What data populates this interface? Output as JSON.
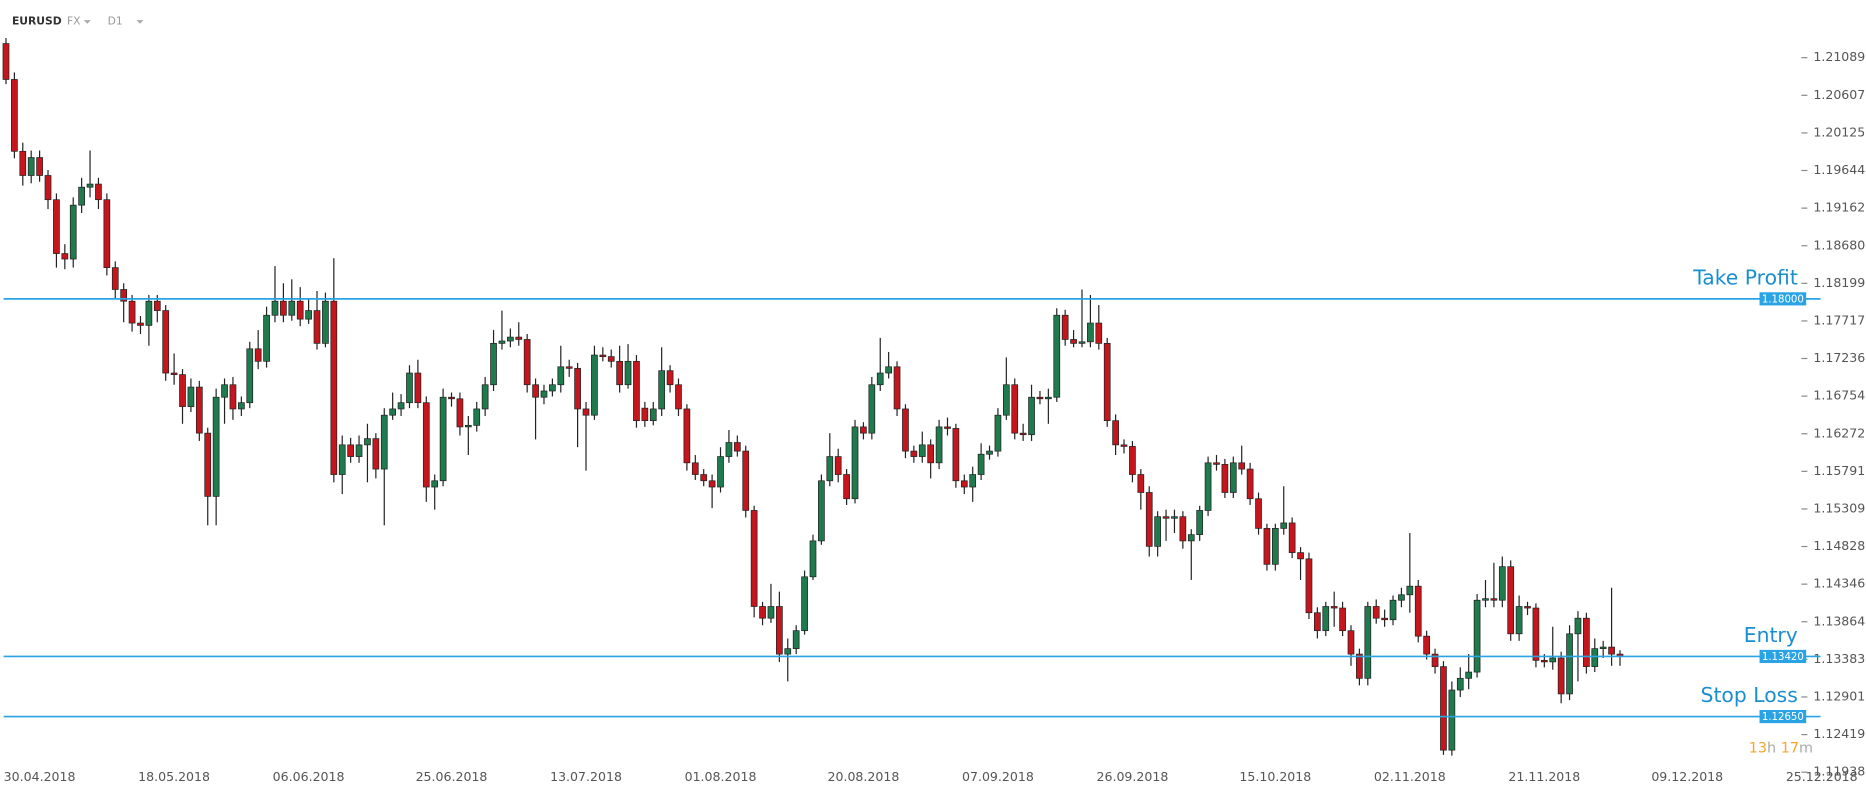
{
  "header": {
    "symbol": "EURUSD",
    "market": "FX",
    "timeframe": "D1"
  },
  "countdown": [
    "13",
    "h",
    "17",
    "m"
  ],
  "chart_data": {
    "type": "candlestick",
    "up_color": "#1f7a4d",
    "down_color": "#c4161c",
    "level_color": "#29a3e3",
    "ylim": [
      1.1175,
      1.218
    ],
    "yticks": [
      1.21089,
      1.20607,
      1.20125,
      1.19644,
      1.19162,
      {
        "value": 1.1868,
        "label": "1.18680"
      },
      1.18199,
      1.17717,
      1.17236,
      1.16754,
      1.16272,
      1.15791,
      1.15309,
      1.14828,
      1.14346,
      1.13864,
      1.13383,
      1.12901,
      1.12419,
      1.11938
    ],
    "levels": [
      {
        "name": "Take Profit",
        "value": 1.18,
        "label": "1.18000"
      },
      {
        "name": "Entry",
        "value": 1.1342,
        "label": "1.13420"
      },
      {
        "name": "Stop Loss",
        "value": 1.1265,
        "label": "1.12650"
      }
    ],
    "categories": [
      null,
      null,
      null,
      null,
      "30.04.2018",
      null,
      null,
      null,
      null,
      null,
      null,
      null,
      null,
      null,
      null,
      null,
      null,
      null,
      null,
      null,
      "18.05.2018",
      null,
      null,
      null,
      null,
      null,
      null,
      null,
      null,
      null,
      null,
      null,
      null,
      null,
      null,
      null,
      "06.06.2018",
      null,
      null,
      null,
      null,
      null,
      null,
      null,
      null,
      null,
      null,
      null,
      null,
      null,
      null,
      null,
      null,
      "25.06.2018",
      null,
      null,
      null,
      null,
      null,
      null,
      null,
      null,
      null,
      null,
      null,
      null,
      null,
      null,
      null,
      "13.07.2018",
      null,
      null,
      null,
      null,
      null,
      null,
      null,
      null,
      null,
      null,
      null,
      null,
      null,
      null,
      null,
      "01.08.2018",
      null,
      null,
      null,
      null,
      null,
      null,
      null,
      null,
      null,
      null,
      null,
      null,
      null,
      null,
      null,
      null,
      "20.08.2018",
      null,
      null,
      null,
      null,
      null,
      null,
      null,
      null,
      null,
      null,
      null,
      null,
      null,
      null,
      null,
      "07.09.2018",
      null,
      null,
      null,
      null,
      null,
      null,
      null,
      null,
      null,
      null,
      null,
      null,
      null,
      null,
      null,
      "26.09.2018",
      null,
      null,
      null,
      null,
      null,
      null,
      null,
      null,
      null,
      null,
      null,
      null,
      null,
      null,
      null,
      null,
      "15.10.2018",
      null,
      null,
      null,
      null,
      null,
      null,
      null,
      null,
      null,
      null,
      null,
      null,
      null,
      null,
      null,
      "02.11.2018",
      null,
      null,
      null,
      null,
      null,
      null,
      null,
      null,
      null,
      null,
      null,
      null,
      null,
      null,
      null,
      "21.11.2018",
      null,
      null,
      null,
      null,
      null,
      null,
      null,
      null,
      null,
      null,
      null,
      null,
      null,
      null,
      null,
      null,
      "09.12.2018",
      null,
      null,
      null,
      null,
      null,
      null,
      null,
      null,
      null,
      null,
      null,
      null,
      null,
      null,
      null,
      "25.12.2018"
    ],
    "open": [
      1.2127,
      1.2081,
      1.1989,
      1.1958,
      1.1981,
      1.1958,
      1.1927,
      1.1858,
      1.1851,
      1.192,
      1.1943,
      1.1947,
      1.1927,
      1.184,
      1.1812,
      1.1797,
      1.1769,
      1.1766,
      1.1797,
      1.1785,
      1.1705,
      1.1703,
      1.1662,
      1.1687,
      1.1628,
      1.1547,
      1.1674,
      1.169,
      1.1659,
      1.1667,
      1.1736,
      1.172,
      1.1779,
      1.1797,
      1.1779,
      1.1797,
      1.1774,
      1.1785,
      1.1743,
      1.1797,
      1.1575,
      1.1613,
      1.1598,
      1.1613,
      1.1621,
      1.1582,
      1.1651,
      1.1659,
      1.1667,
      1.1705,
      1.1667,
      1.1559,
      1.1567,
      1.1674,
      1.1672,
      1.1636,
      1.1638,
      1.1659,
      1.169,
      1.1743,
      1.1746,
      1.1751,
      1.1748,
      1.169,
      1.1674,
      1.1682,
      1.169,
      1.1713,
      1.1711,
      1.1659,
      1.1651,
      1.1728,
      1.1726,
      1.172,
      1.169,
      1.172,
      1.166,
      1.1644,
      1.1659,
      1.1708,
      1.169,
      1.1659,
      1.159,
      1.1575,
      1.1567,
      1.1559,
      1.1598,
      1.1616,
      1.1605,
      1.1529,
      1.1406,
      1.1391,
      1.1406,
      1.1345,
      1.1352,
      1.1375,
      1.1444,
      1.149,
      1.1567,
      1.1598,
      1.1575,
      1.1544,
      1.1636,
      1.1628,
      1.169,
      1.1705,
      1.1713,
      1.1659,
      1.1605,
      1.1598,
      1.1613,
      1.159,
      1.1636,
      1.1634,
      1.1567,
      1.1559,
      1.1575,
      1.1601,
      1.1605,
      1.1651,
      1.169,
      1.1628,
      1.1626,
      1.1674,
      1.1672,
      1.1674,
      1.1779,
      1.1748,
      1.1743,
      1.1745,
      1.1769,
      1.1743,
      1.1644,
      1.1613,
      1.1611,
      1.1575,
      1.1552,
      1.1483,
      1.1521,
      1.1519,
      1.1521,
      1.149,
      1.1498,
      1.1529,
      1.159,
      1.1588,
      1.1552,
      1.159,
      1.1582,
      1.1544,
      1.1506,
      1.146,
      1.1506,
      1.1513,
      1.1475,
      1.1467,
      1.1398,
      1.1375,
      1.1406,
      1.1404,
      1.1375,
      1.1345,
      1.1314,
      1.1406,
      1.1391,
      1.1389,
      1.1414,
      1.1421,
      1.1432,
      1.1368,
      1.1345,
      1.1329,
      1.1222,
      1.1299,
      1.1314,
      1.1322,
      1.1414,
      1.1416,
      1.1414,
      1.1457,
      1.1371,
      1.1406,
      1.1404,
      1.1337,
      1.1335,
      1.134,
      1.1294,
      1.1371,
      1.1391,
      1.1329,
      1.1352,
      1.1354,
      1.1345,
      null,
      null,
      null,
      null,
      null,
      null,
      null,
      null,
      null,
      null,
      null,
      null,
      null,
      null,
      null,
      null,
      null,
      null,
      null,
      null,
      null,
      null,
      null,
      null
    ],
    "high": [
      1.2134,
      1.209,
      1.2,
      1.199,
      1.199,
      1.1965,
      1.1935,
      1.187,
      1.193,
      1.1955,
      1.199,
      1.1955,
      1.1935,
      1.1848,
      1.182,
      1.1805,
      1.1778,
      1.1805,
      1.1805,
      1.1792,
      1.173,
      1.171,
      1.1698,
      1.1695,
      1.1635,
      1.1685,
      1.1698,
      1.17,
      1.1675,
      1.1745,
      1.176,
      1.179,
      1.1842,
      1.182,
      1.1825,
      1.1815,
      1.18,
      1.181,
      1.1808,
      1.1852,
      1.1625,
      1.1622,
      1.1625,
      1.164,
      1.1628,
      1.166,
      1.168,
      1.1678,
      1.1715,
      1.1722,
      1.1675,
      1.1575,
      1.1685,
      1.168,
      1.168,
      1.165,
      1.1668,
      1.17,
      1.176,
      1.1785,
      1.1762,
      1.177,
      1.1755,
      1.1698,
      1.169,
      1.1698,
      1.174,
      1.1722,
      1.1718,
      1.1668,
      1.174,
      1.1738,
      1.1735,
      1.174,
      1.1742,
      1.1728,
      1.1668,
      1.1668,
      1.1738,
      1.1715,
      1.1698,
      1.1665,
      1.16,
      1.1582,
      1.1575,
      1.161,
      1.1632,
      1.1625,
      1.1612,
      1.1535,
      1.1412,
      1.1435,
      1.1425,
      1.1365,
      1.1382,
      1.1452,
      1.1498,
      1.1575,
      1.1628,
      1.1608,
      1.1582,
      1.1645,
      1.1642,
      1.17,
      1.175,
      1.1732,
      1.172,
      1.1665,
      1.1612,
      1.163,
      1.162,
      1.1645,
      1.1648,
      1.164,
      1.1575,
      1.1585,
      1.1615,
      1.1612,
      1.166,
      1.1725,
      1.1698,
      1.164,
      1.169,
      1.1682,
      1.1685,
      1.1788,
      1.1786,
      1.176,
      1.1812,
      1.1805,
      1.1792,
      1.175,
      1.1652,
      1.162,
      1.1618,
      1.1582,
      1.156,
      1.1528,
      1.153,
      1.153,
      1.1528,
      1.1505,
      1.1535,
      1.1598,
      1.16,
      1.1595,
      1.1598,
      1.1612,
      1.159,
      1.1552,
      1.1512,
      1.1512,
      1.156,
      1.152,
      1.1482,
      1.1475,
      1.1405,
      1.1412,
      1.1425,
      1.1412,
      1.1382,
      1.1352,
      1.1412,
      1.1415,
      1.1402,
      1.142,
      1.143,
      1.15,
      1.144,
      1.1375,
      1.1352,
      1.1336,
      1.131,
      1.1328,
      1.1345,
      1.1422,
      1.144,
      1.1462,
      1.147,
      1.1465,
      1.142,
      1.1412,
      1.141,
      1.1345,
      1.138,
      1.1348,
      1.1382,
      1.14,
      1.1398,
      1.1365,
      1.1362,
      1.143,
      1.135,
      null,
      null,
      null,
      null,
      null,
      null,
      null,
      null,
      null,
      null,
      null,
      null,
      null,
      null,
      null,
      null,
      null,
      null,
      null,
      null,
      null,
      null,
      null,
      null
    ],
    "low": [
      1.2075,
      1.198,
      1.1945,
      1.1948,
      1.195,
      1.1915,
      1.184,
      1.1838,
      1.184,
      1.191,
      1.193,
      1.1915,
      1.183,
      1.18,
      1.177,
      1.1758,
      1.1755,
      1.174,
      1.177,
      1.1695,
      1.169,
      1.164,
      1.1655,
      1.1618,
      1.151,
      1.151,
      1.164,
      1.1645,
      1.165,
      1.166,
      1.171,
      1.1712,
      1.177,
      1.177,
      1.1772,
      1.1765,
      1.1768,
      1.1735,
      1.1738,
      1.1565,
      1.155,
      1.159,
      1.159,
      1.1565,
      1.157,
      1.151,
      1.1645,
      1.165,
      1.166,
      1.166,
      1.154,
      1.153,
      1.156,
      1.1662,
      1.1625,
      1.16,
      1.163,
      1.165,
      1.1682,
      1.1735,
      1.1738,
      1.174,
      1.168,
      1.162,
      1.1665,
      1.1675,
      1.168,
      1.17,
      1.161,
      1.158,
      1.1645,
      1.172,
      1.1712,
      1.168,
      1.1685,
      1.1635,
      1.1636,
      1.1638,
      1.165,
      1.168,
      1.165,
      1.158,
      1.1568,
      1.156,
      1.1532,
      1.1552,
      1.159,
      1.1598,
      1.152,
      1.1392,
      1.1382,
      1.1385,
      1.1335,
      1.131,
      1.1345,
      1.137,
      1.144,
      1.1485,
      1.156,
      1.1565,
      1.1536,
      1.1538,
      1.162,
      1.162,
      1.1682,
      1.1698,
      1.165,
      1.1596,
      1.159,
      1.159,
      1.157,
      1.1582,
      1.1625,
      1.1558,
      1.155,
      1.154,
      1.1568,
      1.1594,
      1.1598,
      1.1645,
      1.162,
      1.1618,
      1.1618,
      1.1665,
      1.164,
      1.1668,
      1.174,
      1.1738,
      1.1738,
      1.1738,
      1.1735,
      1.1636,
      1.16,
      1.1602,
      1.1565,
      1.153,
      1.147,
      1.147,
      1.149,
      1.15,
      1.148,
      1.144,
      1.149,
      1.1522,
      1.158,
      1.1545,
      1.1545,
      1.1575,
      1.1536,
      1.1498,
      1.1452,
      1.1452,
      1.1498,
      1.1468,
      1.144,
      1.139,
      1.1365,
      1.1368,
      1.138,
      1.1368,
      1.133,
      1.1305,
      1.1305,
      1.1384,
      1.138,
      1.1382,
      1.1405,
      1.1398,
      1.136,
      1.1338,
      1.132,
      1.1216,
      1.1215,
      1.129,
      1.13,
      1.1315,
      1.1405,
      1.1405,
      1.1405,
      1.1362,
      1.1362,
      1.1395,
      1.1328,
      1.1328,
      1.1325,
      1.1282,
      1.1286,
      1.131,
      1.132,
      1.1322,
      1.134,
      1.133,
      1.133,
      null,
      null,
      null,
      null,
      null,
      null,
      null,
      null,
      null,
      null,
      null,
      null,
      null,
      null,
      null,
      null,
      null,
      null,
      null,
      null,
      null,
      null,
      null,
      null
    ],
    "close": [
      1.2081,
      1.1989,
      1.1958,
      1.1981,
      1.1958,
      1.1927,
      1.1858,
      1.1851,
      1.192,
      1.1943,
      1.1947,
      1.1927,
      1.184,
      1.1812,
      1.1797,
      1.1769,
      1.1766,
      1.1797,
      1.1785,
      1.1705,
      1.1703,
      1.1662,
      1.1687,
      1.1628,
      1.1547,
      1.1674,
      1.169,
      1.1659,
      1.1667,
      1.1736,
      1.172,
      1.1779,
      1.1797,
      1.1779,
      1.1797,
      1.1774,
      1.1785,
      1.1743,
      1.1797,
      1.1575,
      1.1613,
      1.1598,
      1.1613,
      1.1621,
      1.1582,
      1.1651,
      1.1659,
      1.1667,
      1.1705,
      1.1667,
      1.1559,
      1.1567,
      1.1674,
      1.1672,
      1.1636,
      1.1638,
      1.1659,
      1.169,
      1.1743,
      1.1746,
      1.1751,
      1.1748,
      1.169,
      1.1674,
      1.1682,
      1.169,
      1.1713,
      1.1711,
      1.1659,
      1.1651,
      1.1728,
      1.1726,
      1.172,
      1.169,
      1.172,
      1.1644,
      1.1644,
      1.1659,
      1.1708,
      1.169,
      1.1659,
      1.159,
      1.1575,
      1.1567,
      1.1559,
      1.1598,
      1.1616,
      1.1605,
      1.1529,
      1.1406,
      1.1391,
      1.1406,
      1.1345,
      1.1352,
      1.1375,
      1.1444,
      1.149,
      1.1567,
      1.1598,
      1.1575,
      1.1544,
      1.1636,
      1.1628,
      1.169,
      1.1705,
      1.1713,
      1.1659,
      1.1605,
      1.1598,
      1.1613,
      1.159,
      1.1636,
      1.1634,
      1.1567,
      1.1559,
      1.1575,
      1.1601,
      1.1605,
      1.1651,
      1.169,
      1.1628,
      1.1626,
      1.1674,
      1.1672,
      1.1674,
      1.1779,
      1.1748,
      1.1743,
      1.1745,
      1.1769,
      1.1743,
      1.1644,
      1.1613,
      1.1611,
      1.1575,
      1.1552,
      1.1483,
      1.1521,
      1.1519,
      1.1521,
      1.149,
      1.1498,
      1.1529,
      1.159,
      1.1588,
      1.1552,
      1.159,
      1.1582,
      1.1544,
      1.1506,
      1.146,
      1.1506,
      1.1513,
      1.1475,
      1.1467,
      1.1398,
      1.1375,
      1.1406,
      1.1404,
      1.1375,
      1.1345,
      1.1314,
      1.1406,
      1.1391,
      1.1389,
      1.1414,
      1.1421,
      1.1432,
      1.1368,
      1.1345,
      1.1329,
      1.1222,
      1.1299,
      1.1314,
      1.1322,
      1.1414,
      1.1416,
      1.1414,
      1.1457,
      1.1371,
      1.1406,
      1.1404,
      1.1337,
      1.1335,
      1.134,
      1.1294,
      1.1371,
      1.1391,
      1.1329,
      1.1352,
      1.1354,
      1.1345,
      1.1342,
      null,
      null,
      null,
      null,
      null,
      null,
      null,
      null,
      null,
      null,
      null,
      null,
      null,
      null,
      null,
      null,
      null,
      null,
      null,
      null,
      null,
      null,
      null,
      null
    ]
  }
}
